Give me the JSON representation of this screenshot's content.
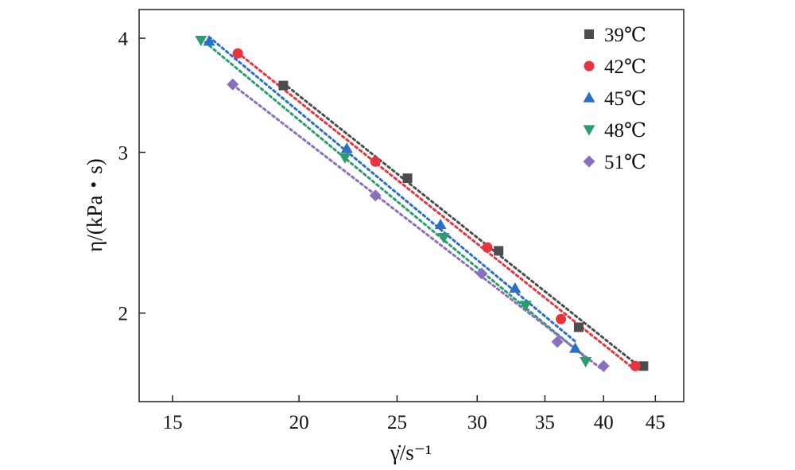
{
  "chart_data": {
    "type": "scatter",
    "title": "",
    "xlabel": "γ̇/s⁻¹",
    "ylabel": "η/(kPa・s)",
    "xscale": "log",
    "yscale": "log",
    "xlim": [
      13.9,
      48
    ],
    "ylim": [
      1.6,
      4.3
    ],
    "x_ticks": [
      15,
      20,
      25,
      30,
      35,
      40,
      45
    ],
    "y_ticks": [
      2,
      3,
      4
    ],
    "legend_position": "top-right",
    "grid": false,
    "series": [
      {
        "name": "39℃",
        "color": "#4d4d4d",
        "marker": "square",
        "x": [
          19.3,
          25.6,
          31.5,
          37.8,
          43.8
        ],
        "y": [
          3.55,
          2.81,
          2.34,
          1.93,
          1.75
        ]
      },
      {
        "name": "42℃",
        "color": "#e8343f",
        "marker": "circle",
        "x": [
          17.4,
          23.8,
          30.7,
          36.3,
          43.0
        ],
        "y": [
          3.85,
          2.93,
          2.36,
          1.97,
          1.75
        ]
      },
      {
        "name": "45℃",
        "color": "#2b6fc6",
        "marker": "triangle-up",
        "x": [
          16.3,
          22.3,
          27.6,
          32.7,
          37.5
        ],
        "y": [
          3.97,
          3.03,
          2.5,
          2.13,
          1.83
        ]
      },
      {
        "name": "48℃",
        "color": "#2a9e6c",
        "marker": "triangle-down",
        "x": [
          16.0,
          22.2,
          27.8,
          33.5,
          38.4
        ],
        "y": [
          3.98,
          2.96,
          2.42,
          2.04,
          1.77
        ]
      },
      {
        "name": "51℃",
        "color": "#8a6fbe",
        "marker": "diamond",
        "x": [
          17.2,
          23.8,
          30.3,
          36.0,
          40.0
        ],
        "y": [
          3.56,
          2.69,
          2.21,
          1.86,
          1.75
        ]
      }
    ]
  }
}
